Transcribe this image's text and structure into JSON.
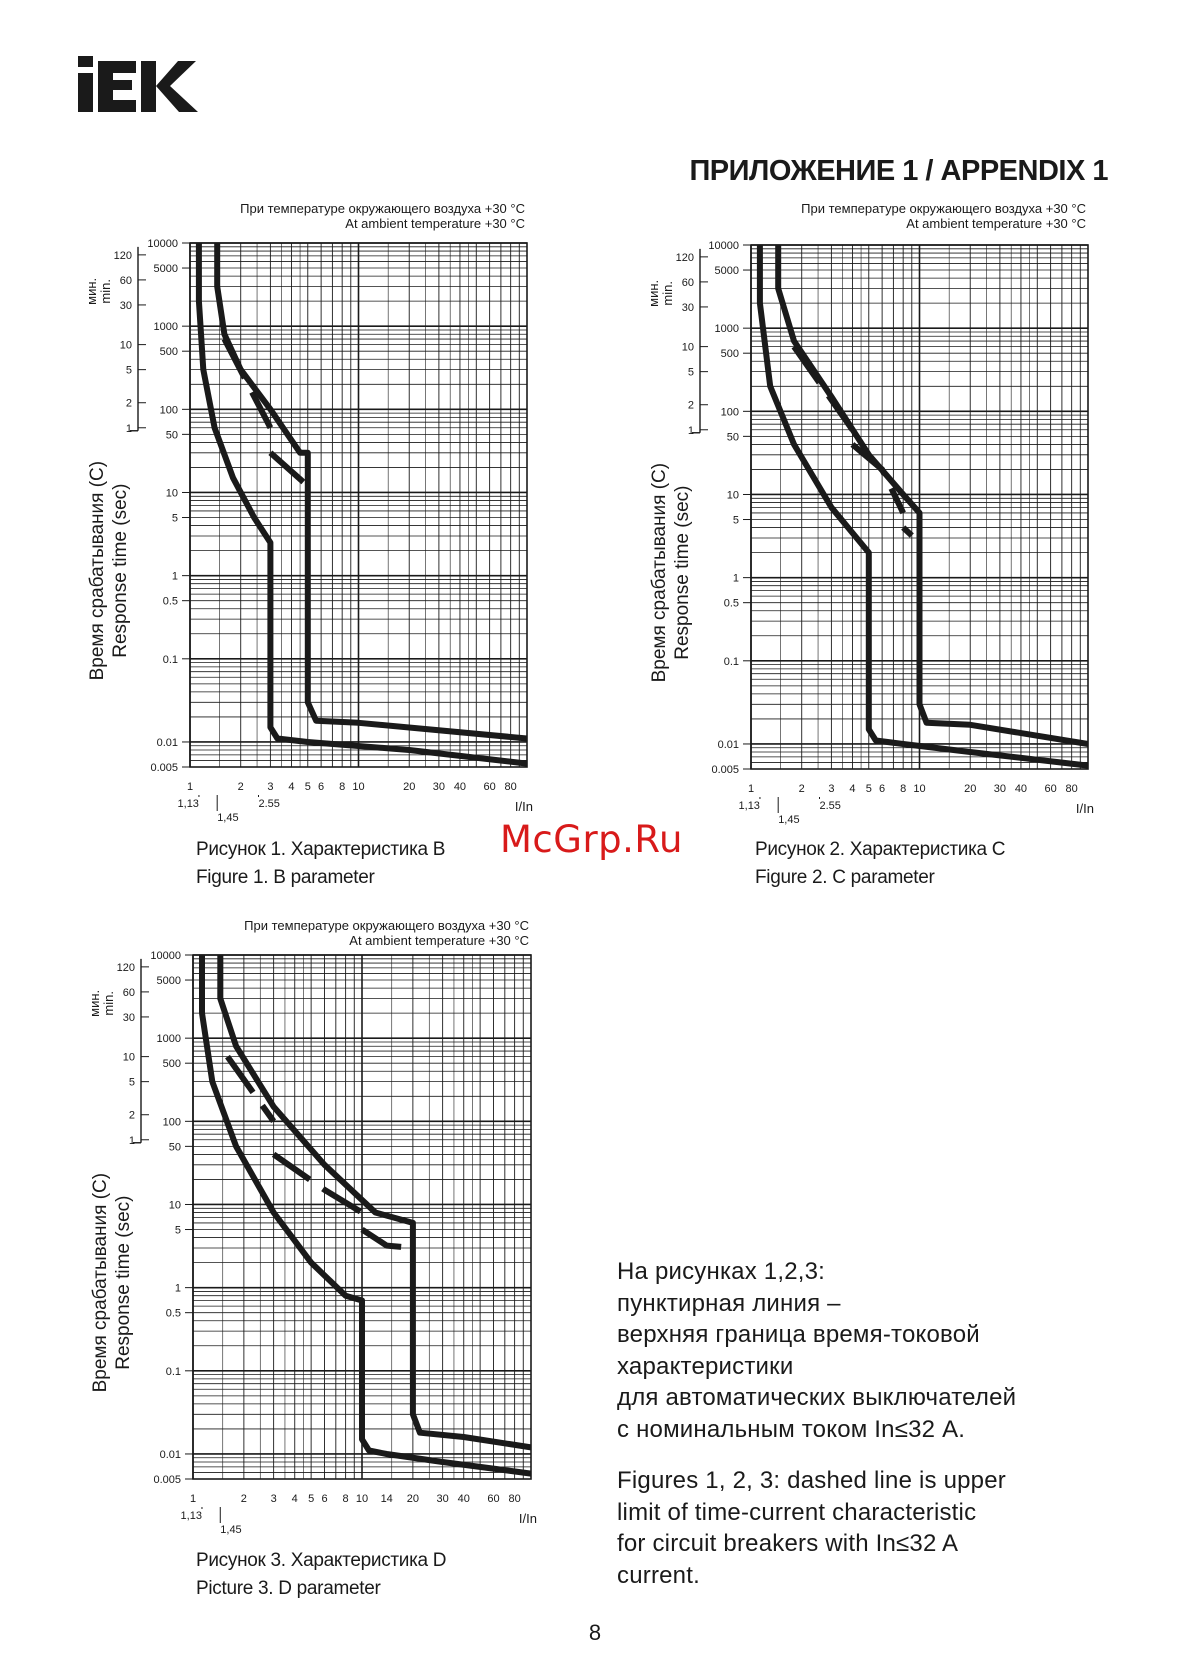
{
  "header": {
    "logo_text": "IEK",
    "appendix_title": "ПРИЛОЖЕНИЕ 1 / APPENDIX 1"
  },
  "common": {
    "temperature_note_ru": "При температуре окружающего воздуха +30 °C",
    "temperature_note_en": "At ambient temperature +30 °C",
    "y_axis_label_ru": "Время срабатывания (С)",
    "y_axis_label_en": "Response time (sec)",
    "minutes_label_ru": "мин.",
    "minutes_label_en": "min.",
    "minute_ticks": [
      "120",
      "60",
      "30",
      "10",
      "5",
      "2",
      "1"
    ],
    "minute_tick_values_sec": [
      7200,
      3600,
      1800,
      600,
      300,
      120,
      60
    ],
    "y_tick_labels": [
      "10000",
      "5000",
      "1000",
      "500",
      "100",
      "50",
      "10",
      "5",
      "1",
      "0.5",
      "0.1",
      "0.01",
      "0.005"
    ],
    "y_tick_values": [
      10000,
      5000,
      1000,
      500,
      100,
      50,
      10,
      5,
      1,
      0.5,
      0.1,
      0.01,
      0.005
    ],
    "colors": {
      "curve": "#1a1a1a",
      "grid": "#1a1a1a",
      "watermark": "#d81a1a"
    }
  },
  "chart_data": [
    {
      "type": "line",
      "caption_ru": "Рисунок 1. Характеристика B",
      "caption_en": "Figure 1. B parameter",
      "xlabel": "I/In",
      "x_scale": "log",
      "y_scale": "log",
      "xlim": [
        1,
        100
      ],
      "ylim": [
        0.005,
        10000
      ],
      "x_tick_labels_top": [
        "1",
        "2",
        "3",
        "4",
        "5",
        "6",
        "8",
        "10",
        "20",
        "30",
        "40",
        "60",
        "80"
      ],
      "x_tick_values_top": [
        1,
        2,
        3,
        4,
        5,
        6,
        8,
        10,
        20,
        30,
        40,
        60,
        80
      ],
      "x_tick_labels_bottom": [
        "1,13",
        "1,45",
        "2.55"
      ],
      "x_tick_values_bottom": [
        1.13,
        1.45,
        2.55
      ],
      "series": [
        {
          "style": "solid",
          "points": [
            [
              1.13,
              10000
            ],
            [
              1.13,
              2000
            ],
            [
              1.2,
              300
            ],
            [
              1.4,
              60
            ],
            [
              1.8,
              15
            ],
            [
              2.4,
              5
            ],
            [
              3,
              2.5
            ],
            [
              3,
              0.015
            ],
            [
              3.3,
              0.011
            ],
            [
              5,
              0.01
            ],
            [
              20,
              0.008
            ],
            [
              100,
              0.0055
            ]
          ]
        },
        {
          "style": "solid",
          "points": [
            [
              1.45,
              10000
            ],
            [
              1.45,
              3000
            ],
            [
              1.6,
              800
            ],
            [
              2,
              300
            ],
            [
              3,
              100
            ],
            [
              4.5,
              30
            ],
            [
              5,
              30
            ],
            [
              5,
              0.03
            ],
            [
              5.6,
              0.018
            ],
            [
              10,
              0.017
            ],
            [
              100,
              0.011
            ]
          ]
        },
        {
          "style": "dashed",
          "points": [
            [
              1.6,
              700
            ],
            [
              3,
              60
            ]
          ]
        },
        {
          "style": "dashed",
          "points": [
            [
              3,
              30
            ],
            [
              5,
              12
            ]
          ]
        }
      ]
    },
    {
      "type": "line",
      "caption_ru": "Рисунок 2. Характеристика C",
      "caption_en": "Figure 2. C parameter",
      "xlabel": "I/In",
      "x_scale": "log",
      "y_scale": "log",
      "xlim": [
        1,
        100
      ],
      "ylim": [
        0.005,
        10000
      ],
      "x_tick_labels_top": [
        "1",
        "2",
        "3",
        "4",
        "5",
        "6",
        "8",
        "10",
        "20",
        "30",
        "40",
        "60",
        "80"
      ],
      "x_tick_values_top": [
        1,
        2,
        3,
        4,
        5,
        6,
        8,
        10,
        20,
        30,
        40,
        60,
        80
      ],
      "x_tick_labels_bottom": [
        "1,13",
        "1,45",
        "2.55"
      ],
      "x_tick_values_bottom": [
        1.13,
        1.45,
        2.55
      ],
      "series": [
        {
          "style": "solid",
          "points": [
            [
              1.13,
              10000
            ],
            [
              1.13,
              2000
            ],
            [
              1.3,
              200
            ],
            [
              1.8,
              40
            ],
            [
              3,
              7
            ],
            [
              5,
              2
            ],
            [
              5,
              0.015
            ],
            [
              5.5,
              0.011
            ],
            [
              8,
              0.01
            ],
            [
              20,
              0.008
            ],
            [
              100,
              0.0055
            ]
          ]
        },
        {
          "style": "solid",
          "points": [
            [
              1.45,
              10000
            ],
            [
              1.45,
              3000
            ],
            [
              1.8,
              700
            ],
            [
              3,
              150
            ],
            [
              5,
              30
            ],
            [
              8,
              10
            ],
            [
              10,
              6
            ],
            [
              10,
              0.03
            ],
            [
              11,
              0.018
            ],
            [
              20,
              0.017
            ],
            [
              100,
              0.01
            ]
          ]
        },
        {
          "style": "dashed",
          "points": [
            [
              1.8,
              600
            ],
            [
              4,
              60
            ]
          ]
        },
        {
          "style": "dashed",
          "points": [
            [
              4,
              40
            ],
            [
              6,
              20
            ],
            [
              8,
              6
            ]
          ]
        },
        {
          "style": "dashed",
          "points": [
            [
              8,
              4
            ],
            [
              9,
              3.2
            ]
          ]
        }
      ]
    },
    {
      "type": "line",
      "caption_ru": "Рисунок 3. Характеристика D",
      "caption_en": "Picture 3. D parameter",
      "xlabel": "I/In",
      "x_scale": "log",
      "y_scale": "log",
      "xlim": [
        1,
        100
      ],
      "ylim": [
        0.005,
        10000
      ],
      "x_tick_labels_top": [
        "1",
        "2",
        "3",
        "4",
        "5",
        "6",
        "8",
        "10",
        "14",
        "20",
        "30",
        "40",
        "60",
        "80"
      ],
      "x_tick_values_top": [
        1,
        2,
        3,
        4,
        5,
        6,
        8,
        10,
        14,
        20,
        30,
        40,
        60,
        80
      ],
      "x_tick_labels_bottom": [
        "1,13",
        "1,45"
      ],
      "x_tick_values_bottom": [
        1.13,
        1.45
      ],
      "series": [
        {
          "style": "solid",
          "points": [
            [
              1.13,
              10000
            ],
            [
              1.13,
              2000
            ],
            [
              1.3,
              300
            ],
            [
              1.8,
              50
            ],
            [
              3,
              8
            ],
            [
              5,
              2
            ],
            [
              8,
              0.8
            ],
            [
              10,
              0.7
            ],
            [
              10,
              0.015
            ],
            [
              11,
              0.011
            ],
            [
              14,
              0.01
            ],
            [
              30,
              0.008
            ],
            [
              100,
              0.0058
            ]
          ]
        },
        {
          "style": "solid",
          "points": [
            [
              1.45,
              10000
            ],
            [
              1.45,
              3000
            ],
            [
              1.8,
              800
            ],
            [
              3,
              150
            ],
            [
              6,
              30
            ],
            [
              12,
              8
            ],
            [
              20,
              6
            ],
            [
              20,
              0.03
            ],
            [
              22,
              0.018
            ],
            [
              40,
              0.016
            ],
            [
              100,
              0.012
            ]
          ]
        },
        {
          "style": "dashed",
          "points": [
            [
              1.6,
              600
            ],
            [
              3,
              100
            ]
          ]
        },
        {
          "style": "dashed",
          "points": [
            [
              3,
              40
            ],
            [
              6,
              15
            ],
            [
              10,
              8
            ]
          ]
        },
        {
          "style": "dashed",
          "points": [
            [
              10,
              5
            ],
            [
              14,
              3.2
            ],
            [
              20,
              3
            ]
          ]
        }
      ]
    }
  ],
  "note_ru_lines": [
    "На рисунках 1,2,3:",
    "пунктирная линия –",
    "верхняя граница время-токовой",
    "характеристики",
    "для автоматических выключателей",
    "с номинальным током In≤32 А."
  ],
  "note_en_lines": [
    "Figures 1, 2, 3: dashed line is upper",
    "limit of time-current characteristic",
    "for circuit breakers with In≤32 A",
    "current."
  ],
  "watermark_text": "McGrp.Ru",
  "page_number": "8"
}
